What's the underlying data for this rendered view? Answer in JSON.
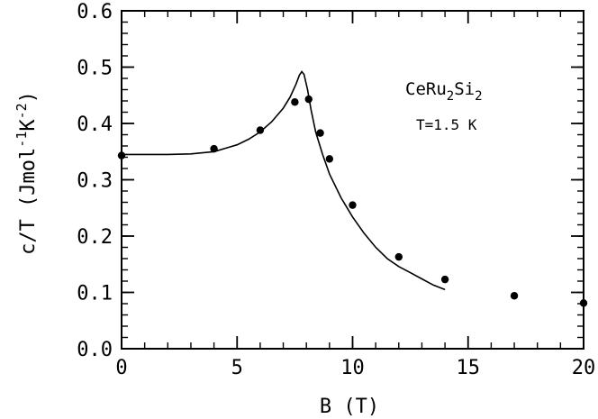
{
  "chart_data": {
    "type": "scatter",
    "title": "",
    "xlabel": "B  (T)",
    "ylabel_parts": {
      "prefix": "c/T  (Jmol",
      "sup1": "-1",
      "mid": "K",
      "sup2": "-2",
      "suffix": ")"
    },
    "xlim": [
      0,
      20
    ],
    "ylim": [
      0.0,
      0.6
    ],
    "x_ticks": [
      0,
      5,
      10,
      15,
      20
    ],
    "x_tick_labels": [
      "0",
      "5",
      "10",
      "15",
      "20"
    ],
    "y_ticks": [
      0.0,
      0.1,
      0.2,
      0.3,
      0.4,
      0.5,
      0.6
    ],
    "y_tick_labels": [
      "0.0",
      "0.1",
      "0.2",
      "0.3",
      "0.4",
      "0.5",
      "0.6"
    ],
    "x_minor_step": 1,
    "y_minor_step": 0.02,
    "grid": false,
    "annotations": {
      "compound": {
        "base1": "CeRu",
        "sub1": "2",
        "base2": "Si",
        "sub2": "2"
      },
      "temperature": "T=1.5 K"
    },
    "series": [
      {
        "kind": "scatter",
        "x": [
          0,
          4,
          6,
          7.5,
          8.1,
          8.6,
          9.0,
          10.0,
          12.0,
          14.0,
          17.0,
          20.0
        ],
        "y": [
          0.343,
          0.355,
          0.388,
          0.438,
          0.443,
          0.383,
          0.337,
          0.255,
          0.163,
          0.123,
          0.094,
          0.081
        ]
      },
      {
        "kind": "line",
        "x": [
          0,
          1,
          2,
          3,
          4,
          5,
          5.5,
          6,
          6.5,
          7,
          7.3,
          7.55,
          7.7,
          7.8,
          7.9,
          8.05,
          8.2,
          8.4,
          8.7,
          9,
          9.5,
          10,
          10.5,
          11,
          11.5,
          12,
          12.5,
          13,
          13.5,
          14
        ],
        "y": [
          0.345,
          0.345,
          0.345,
          0.346,
          0.35,
          0.362,
          0.372,
          0.385,
          0.403,
          0.427,
          0.447,
          0.47,
          0.486,
          0.492,
          0.487,
          0.46,
          0.425,
          0.385,
          0.345,
          0.31,
          0.268,
          0.234,
          0.205,
          0.18,
          0.16,
          0.146,
          0.135,
          0.124,
          0.113,
          0.105
        ]
      }
    ]
  }
}
